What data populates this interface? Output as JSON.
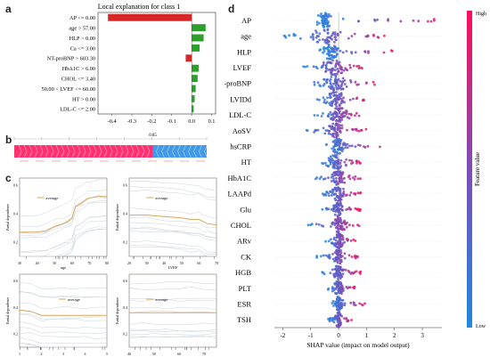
{
  "panels": {
    "a": "a",
    "b": "b",
    "c": "c",
    "d": "d"
  },
  "colors": {
    "negative": "#d62728",
    "positive": "#2ca02c",
    "shap_low": "#1e88e5",
    "shap_high": "#ff0d57",
    "pdp_line": "#d9a55a",
    "ice_line": "#c9d1dc"
  },
  "chart_data": [
    {
      "id": "a",
      "type": "bar",
      "title": "Local explanation for class 1",
      "categories": [
        "AP <= 0.00",
        "age > 57.00",
        "HLP > 0.00",
        "Ca <= 3.00",
        "NT-proBNP > 603.30",
        "HbA1C > 6.00",
        "CHOL <= 3.40",
        "50.00 < LVEF <= 60.00",
        "HT > 0.00",
        "LDL-C <= 2.00"
      ],
      "values": [
        -0.42,
        0.07,
        0.06,
        0.04,
        -0.03,
        0.035,
        0.03,
        0.02,
        0.015,
        0.01
      ],
      "xticks": [
        "-0.4",
        "-0.3",
        "-0.2",
        "-0.1",
        "0.0",
        "0.1"
      ],
      "xlim": [
        -0.47,
        0.12
      ]
    },
    {
      "id": "b",
      "type": "bar",
      "note_label": "0.85",
      "segments": [
        {
          "sign": "positive",
          "value": 0.72
        },
        {
          "sign": "negative",
          "value": 0.28
        }
      ]
    },
    {
      "id": "c",
      "type": "line",
      "ylabel": "Partial dependence",
      "legend": "average",
      "subplots": [
        {
          "xlabel": "age",
          "xticks": [
            "30",
            "40",
            "50",
            "60",
            "70",
            "80"
          ],
          "yticks": [
            "0.2",
            "0.4",
            "0.6"
          ],
          "x": [
            30,
            40,
            45,
            50,
            55,
            58,
            60,
            62,
            65,
            68,
            70,
            75,
            80
          ],
          "y": [
            0.27,
            0.27,
            0.28,
            0.31,
            0.33,
            0.35,
            0.37,
            0.45,
            0.47,
            0.5,
            0.51,
            0.52,
            0.52
          ]
        },
        {
          "xlabel": "LVEF",
          "xticks": [
            "20",
            "30",
            "40",
            "50",
            "60",
            "70"
          ],
          "yticks": [
            "0.2",
            "0.4",
            "0.6"
          ],
          "x": [
            20,
            30,
            40,
            50,
            55,
            60,
            63,
            65,
            70
          ],
          "y": [
            0.39,
            0.39,
            0.38,
            0.37,
            0.36,
            0.36,
            0.34,
            0.33,
            0.32
          ]
        },
        {
          "xlabel": "LDL-C",
          "xticks": [
            "1",
            "2",
            "3",
            "4",
            "5"
          ],
          "yticks": [
            "0.2",
            "0.4",
            "0.6"
          ],
          "x": [
            1,
            1.5,
            2,
            2.5,
            3,
            3.5,
            4,
            4.5,
            5
          ],
          "y": [
            0.38,
            0.37,
            0.34,
            0.34,
            0.34,
            0.34,
            0.34,
            0.34,
            0.34
          ]
        },
        {
          "xlabel": "LVIDd",
          "xticks": [
            "40",
            "50",
            "60",
            "70"
          ],
          "yticks": [
            "0.2",
            "0.4",
            "0.6"
          ],
          "x": [
            40,
            45,
            50,
            55,
            60,
            65,
            70,
            75
          ],
          "y": [
            0.36,
            0.36,
            0.36,
            0.36,
            0.36,
            0.36,
            0.36,
            0.36
          ]
        }
      ]
    },
    {
      "id": "d",
      "type": "scatter",
      "xlabel": "SHAP value (impact on model output)",
      "colorbar_label": "Feature value",
      "colorbar_high": "High",
      "colorbar_low": "Low",
      "xticks": [
        "-2",
        "-1",
        "0",
        "1",
        "2",
        "3"
      ],
      "xlim": [
        -2.3,
        3.7
      ],
      "features": [
        {
          "name": "AP",
          "min": -1.0,
          "max": 3.6,
          "center": -0.5,
          "spread": 0.25
        },
        {
          "name": "age",
          "min": -2.0,
          "max": 2.1,
          "center": -0.4,
          "spread": 0.6
        },
        {
          "name": "HLP",
          "min": -0.7,
          "max": 2.0,
          "center": -0.3,
          "spread": 0.25
        },
        {
          "name": "LVEF",
          "min": -1.3,
          "max": 1.0,
          "center": -0.2,
          "spread": 0.4
        },
        {
          "name": "NT-proBNP",
          "min": -1.0,
          "max": 1.3,
          "center": -0.1,
          "spread": 0.35
        },
        {
          "name": "LVIDd",
          "min": -0.8,
          "max": 1.0,
          "center": -0.1,
          "spread": 0.3
        },
        {
          "name": "LDL-C",
          "min": -0.9,
          "max": 0.9,
          "center": 0.0,
          "spread": 0.28
        },
        {
          "name": "AoSV",
          "min": -1.2,
          "max": 1.0,
          "center": -0.1,
          "spread": 0.3
        },
        {
          "name": "hsCRP",
          "min": -0.5,
          "max": 1.5,
          "center": 0.0,
          "spread": 0.22
        },
        {
          "name": "HT",
          "min": -0.6,
          "max": 0.8,
          "center": -0.1,
          "spread": 0.25
        },
        {
          "name": "HbA1C",
          "min": -0.9,
          "max": 0.9,
          "center": 0.0,
          "spread": 0.22
        },
        {
          "name": "LAAPd",
          "min": -0.6,
          "max": 0.8,
          "center": 0.0,
          "spread": 0.2
        },
        {
          "name": "Glu",
          "min": -0.6,
          "max": 0.8,
          "center": 0.0,
          "spread": 0.18
        },
        {
          "name": "CHOL",
          "min": -1.1,
          "max": 0.8,
          "center": 0.0,
          "spread": 0.2
        },
        {
          "name": "ARv",
          "min": -0.5,
          "max": 0.6,
          "center": 0.0,
          "spread": 0.15
        },
        {
          "name": "CK",
          "min": -0.8,
          "max": 0.7,
          "center": 0.0,
          "spread": 0.15
        },
        {
          "name": "HGB",
          "min": -0.6,
          "max": 0.8,
          "center": 0.0,
          "spread": 0.16
        },
        {
          "name": "PLT",
          "min": -0.4,
          "max": 0.6,
          "center": 0.0,
          "spread": 0.14
        },
        {
          "name": "ESR",
          "min": -0.4,
          "max": 1.1,
          "center": 0.0,
          "spread": 0.14
        },
        {
          "name": "TSH",
          "min": -0.4,
          "max": 0.5,
          "center": 0.0,
          "spread": 0.1
        }
      ]
    }
  ]
}
